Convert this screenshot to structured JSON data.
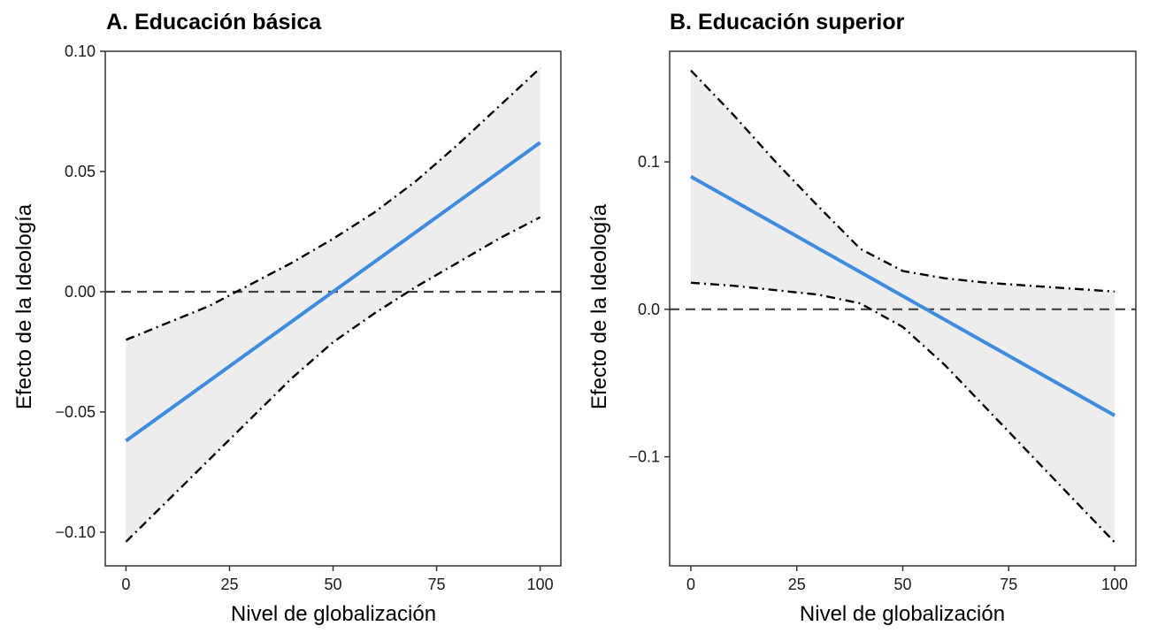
{
  "chart_data": [
    {
      "type": "line",
      "title": "A. Educación básica",
      "xlabel": "Nivel de globalización",
      "ylabel": "Efecto de la Ideología",
      "xlim": [
        -5,
        105
      ],
      "ylim": [
        -0.114,
        0.1
      ],
      "x_ticks": [
        0,
        25,
        50,
        75,
        100
      ],
      "x_tick_labels": [
        "0",
        "25",
        "50",
        "75",
        "100"
      ],
      "y_ticks": [
        -0.1,
        -0.05,
        0,
        0.05,
        0.1
      ],
      "y_tick_labels": [
        "−0.10",
        "−0.05",
        "0.00",
        "0.05",
        "0.10"
      ],
      "reference_line": 0,
      "grid": false,
      "colors": {
        "estimate": "#3f8bde",
        "band": "#ededed",
        "bounds": "#000000",
        "reference": "#404040"
      },
      "series": [
        {
          "role": "estimate",
          "style": "solid",
          "x": [
            0,
            100
          ],
          "y": [
            -0.062,
            0.062
          ]
        },
        {
          "role": "upper",
          "style": "dotdash",
          "x": [
            0,
            10,
            20,
            30,
            40,
            50,
            60,
            70,
            80,
            90,
            100
          ],
          "y": [
            -0.02,
            -0.013,
            -0.006,
            0.003,
            0.012,
            0.022,
            0.033,
            0.046,
            0.061,
            0.077,
            0.093
          ]
        },
        {
          "role": "lower",
          "style": "dotdash",
          "x": [
            0,
            10,
            20,
            30,
            40,
            50,
            60,
            70,
            80,
            90,
            100
          ],
          "y": [
            -0.104,
            -0.087,
            -0.07,
            -0.053,
            -0.036,
            -0.021,
            -0.009,
            0.002,
            0.012,
            0.022,
            0.031
          ]
        }
      ]
    },
    {
      "type": "line",
      "title": "B. Educación superior",
      "xlabel": "Nivel de globalización",
      "ylabel": "Efecto de la Ideología",
      "xlim": [
        -5,
        105
      ],
      "ylim": [
        -0.174,
        0.175
      ],
      "x_ticks": [
        0,
        25,
        50,
        75,
        100
      ],
      "x_tick_labels": [
        "0",
        "25",
        "50",
        "75",
        "100"
      ],
      "y_ticks": [
        -0.1,
        0,
        0.1
      ],
      "y_tick_labels": [
        "−0.1",
        "0.0",
        "0.1"
      ],
      "reference_line": 0,
      "grid": false,
      "colors": {
        "estimate": "#3f8bde",
        "band": "#ededed",
        "bounds": "#000000",
        "reference": "#404040"
      },
      "series": [
        {
          "role": "estimate",
          "style": "solid",
          "x": [
            0,
            100
          ],
          "y": [
            0.09,
            -0.072
          ]
        },
        {
          "role": "upper",
          "style": "dotdash",
          "x": [
            0,
            10,
            20,
            30,
            40,
            50,
            60,
            70,
            80,
            90,
            100
          ],
          "y": [
            0.162,
            0.132,
            0.1,
            0.07,
            0.041,
            0.026,
            0.021,
            0.018,
            0.016,
            0.014,
            0.012
          ]
        },
        {
          "role": "lower",
          "style": "dotdash",
          "x": [
            0,
            10,
            20,
            30,
            40,
            50,
            60,
            70,
            80,
            90,
            100
          ],
          "y": [
            0.018,
            0.016,
            0.013,
            0.01,
            0.004,
            -0.012,
            -0.038,
            -0.068,
            -0.098,
            -0.128,
            -0.158
          ]
        }
      ]
    }
  ]
}
